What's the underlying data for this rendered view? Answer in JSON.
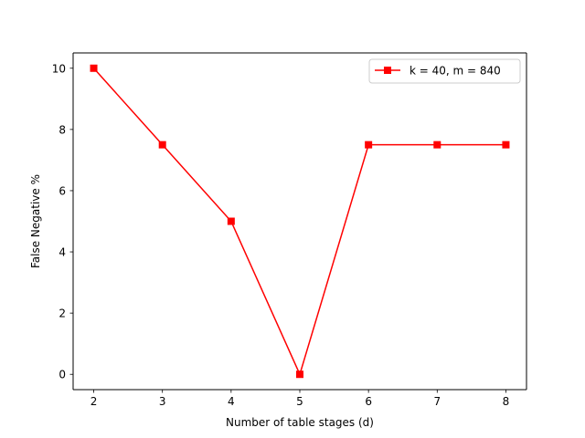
{
  "chart_data": {
    "type": "line",
    "title": "",
    "xlabel": "Number of table stages (d)",
    "ylabel": "False Negative %",
    "x": [
      2,
      3,
      4,
      5,
      6,
      7,
      8
    ],
    "xlim": [
      1.7,
      8.3
    ],
    "ylim": [
      -0.5,
      10.5
    ],
    "xticks": [
      2,
      3,
      4,
      5,
      6,
      7,
      8
    ],
    "yticks": [
      0,
      2,
      4,
      6,
      8,
      10
    ],
    "grid": false,
    "legend_position": "top-right",
    "series": [
      {
        "name": "k = 40, m = 840",
        "values": [
          10,
          7.5,
          5,
          0,
          7.5,
          7.5,
          7.5
        ],
        "color": "#ff0000",
        "marker": "square"
      }
    ]
  }
}
